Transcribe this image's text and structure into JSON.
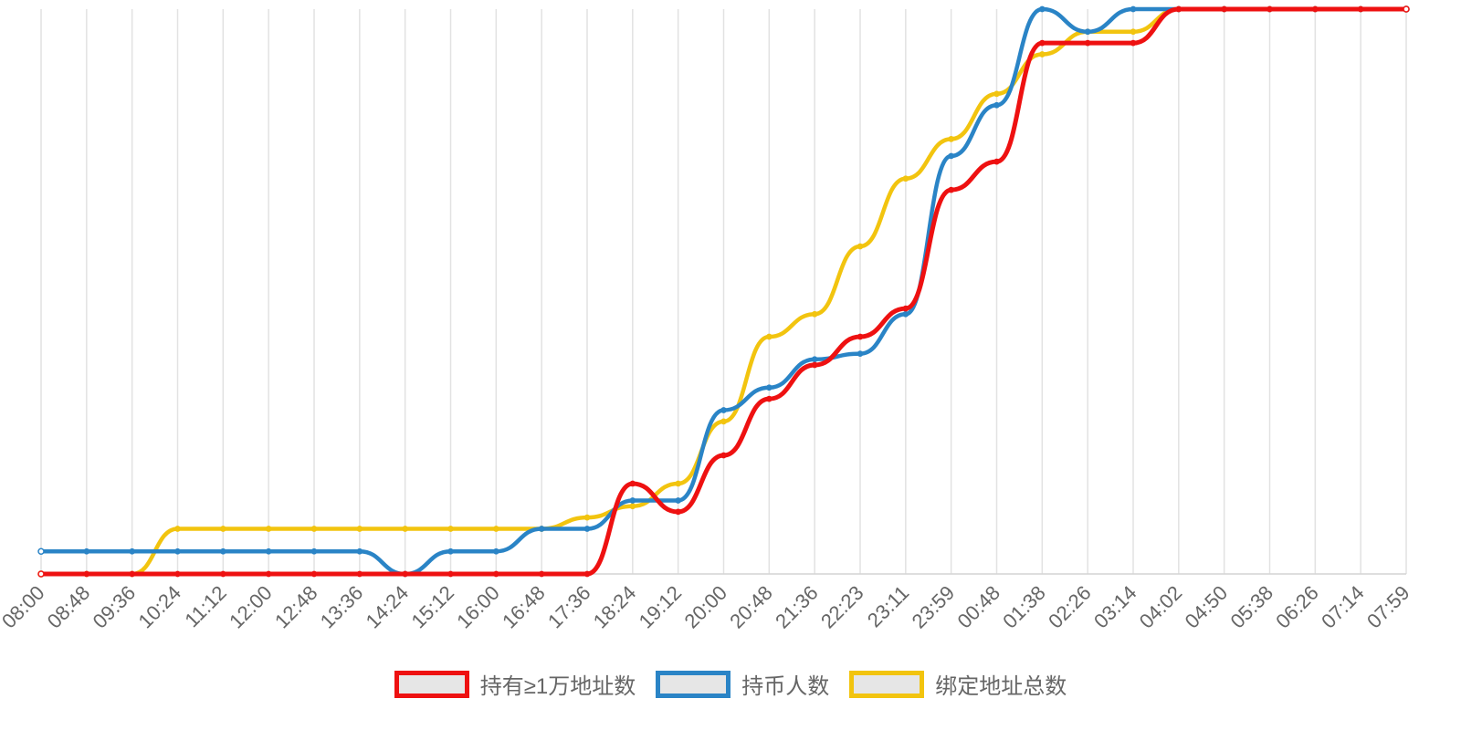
{
  "chart_data": {
    "type": "line",
    "title": "",
    "xlabel": "",
    "ylabel": "",
    "categories": [
      "08:00",
      "08:48",
      "09:36",
      "10:24",
      "11:12",
      "12:00",
      "12:48",
      "13:36",
      "14:24",
      "15:12",
      "16:00",
      "16:48",
      "17:36",
      "18:24",
      "19:12",
      "20:00",
      "20:48",
      "21:36",
      "22:23",
      "23:11",
      "23:59",
      "00:48",
      "01:38",
      "02:26",
      "03:14",
      "04:02",
      "04:50",
      "05:38",
      "06:26",
      "07:14",
      "07:59"
    ],
    "ylim": [
      0,
      100
    ],
    "grid": {
      "vertical": true,
      "horizontal": false
    },
    "legend_position": "bottom",
    "series": [
      {
        "name": "持有≥1万地址数",
        "color": "#ee1111",
        "values": [
          0,
          0,
          0,
          0,
          0,
          0,
          0,
          0,
          0,
          0,
          0,
          0,
          0,
          16,
          11,
          21,
          31,
          37,
          42,
          47,
          68,
          73,
          94,
          94,
          94,
          100,
          100,
          100,
          100,
          100,
          100
        ]
      },
      {
        "name": "持币人数",
        "color": "#2a84c6",
        "values": [
          4,
          4,
          4,
          4,
          4,
          4,
          4,
          4,
          0,
          4,
          4,
          8,
          8,
          13,
          13,
          29,
          33,
          38,
          39,
          46,
          74,
          83,
          100,
          96,
          100,
          100,
          100,
          100,
          100,
          100,
          100
        ]
      },
      {
        "name": "绑定地址总数",
        "color": "#f2c40f",
        "values": [
          0,
          0,
          0,
          8,
          8,
          8,
          8,
          8,
          8,
          8,
          8,
          8,
          10,
          12,
          16,
          27,
          42,
          46,
          58,
          70,
          77,
          85,
          92,
          96,
          96,
          100,
          100,
          100,
          100,
          100,
          100
        ]
      }
    ]
  }
}
